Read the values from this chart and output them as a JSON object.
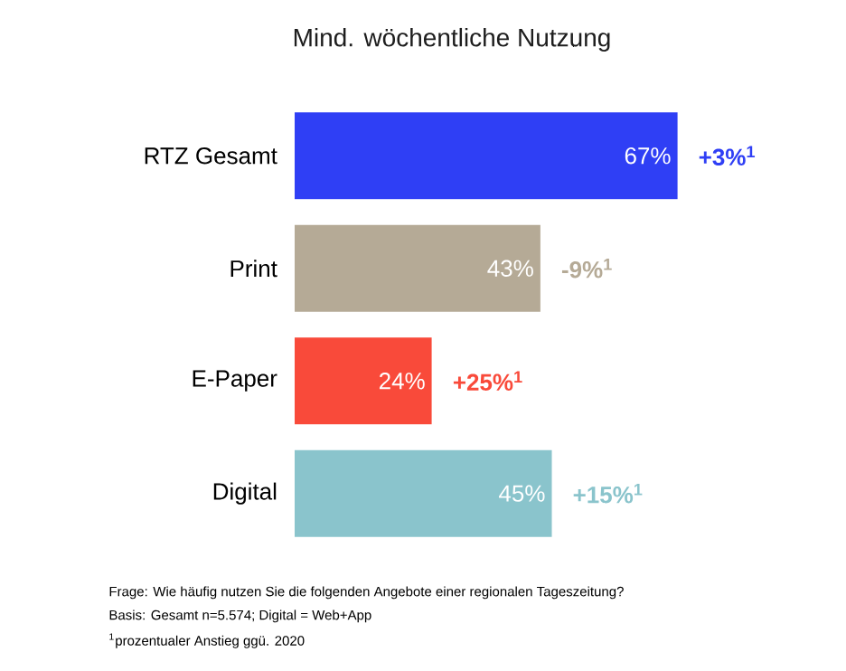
{
  "chart_data": {
    "type": "bar",
    "orientation": "horizontal",
    "title": "Mind. wöchentliche Nutzung",
    "categories": [
      "RTZ Gesamt",
      "Print",
      "E-Paper",
      "Digital"
    ],
    "values": [
      67,
      43,
      24,
      45
    ],
    "value_labels": [
      "67%",
      "43%",
      "24%",
      "45%"
    ],
    "colors": [
      "#2f3ff5",
      "#b5aa96",
      "#f94a3a",
      "#8ac4cc"
    ],
    "annotations": [
      {
        "text": "+3%$^{1}$",
        "x": 67,
        "y": "RTZ Gesamt"
      },
      {
        "text": "-9%$^{1}$",
        "x": 43,
        "y": "Print"
      },
      {
        "text": "+25%$^{1}$",
        "x": 24,
        "y": "E-Paper"
      },
      {
        "text": "+15%$^{1}$",
        "x": 45,
        "y": "Digital"
      },
      "Frage: Wie häufig nutzen Sie die folgenden Angebote einer regionalen Tageszeitung?",
      "Basis: Gesamt n=5.574; Digital = Web+App",
      "$^{1}$prozentualer Anstieg ggü. 2020"
    ]
  }
}
